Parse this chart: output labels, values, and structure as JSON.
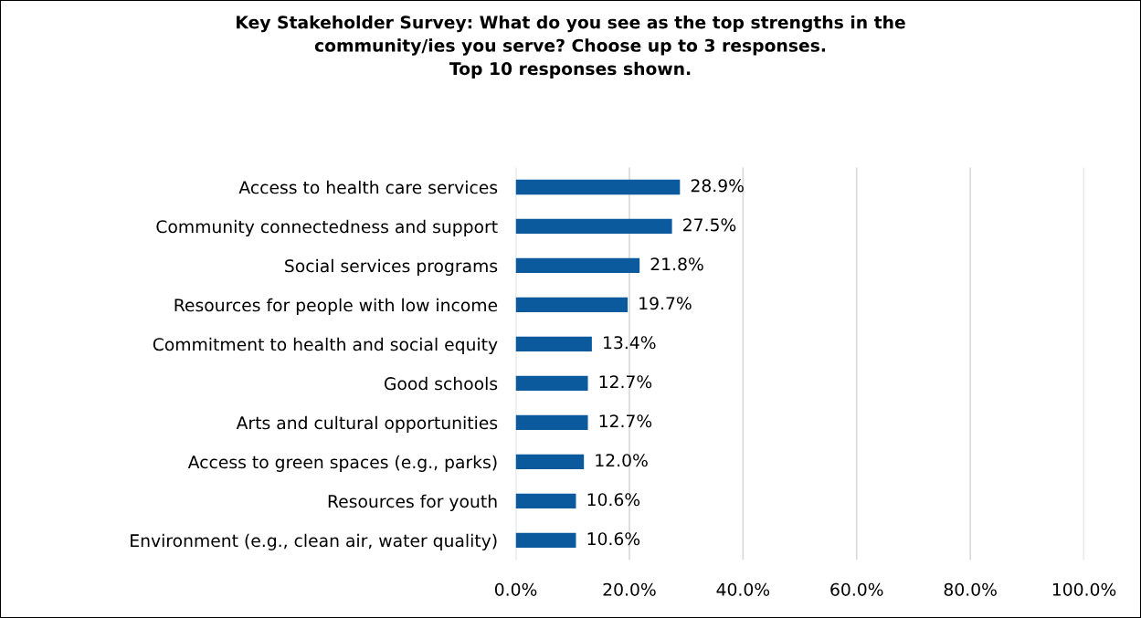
{
  "chart_data": {
    "type": "bar",
    "orientation": "horizontal",
    "title": "Key Stakeholder Survey: What do you see as the top strengths in the\ncommunity/ies you serve? Choose up to 3 responses.\nTop 10 responses shown.",
    "categories": [
      "Access to health care services",
      "Community connectedness and support",
      "Social services programs",
      "Resources for people with low income",
      "Commitment to health and social equity",
      "Good schools",
      "Arts and cultural opportunities",
      "Access to green spaces (e.g., parks)",
      "Resources for youth",
      "Environment (e.g., clean air, water quality)"
    ],
    "values": [
      28.9,
      27.5,
      21.8,
      19.7,
      13.4,
      12.7,
      12.7,
      12.0,
      10.6,
      10.6
    ],
    "value_labels": [
      "28.9%",
      "27.5%",
      "21.8%",
      "19.7%",
      "13.4%",
      "12.7%",
      "12.7%",
      "12.0%",
      "10.6%",
      "10.6%"
    ],
    "color": "#0c5a9e",
    "xlim": [
      0,
      100
    ],
    "xticks": [
      {
        "value": 0,
        "label": "0.0%"
      },
      {
        "value": 20,
        "label": "20.0%"
      },
      {
        "value": 40,
        "label": "40.0%"
      },
      {
        "value": 60,
        "label": "60.0%"
      },
      {
        "value": 80,
        "label": "80.0%"
      },
      {
        "value": 100,
        "label": "100.0%"
      }
    ],
    "grid": "x"
  }
}
